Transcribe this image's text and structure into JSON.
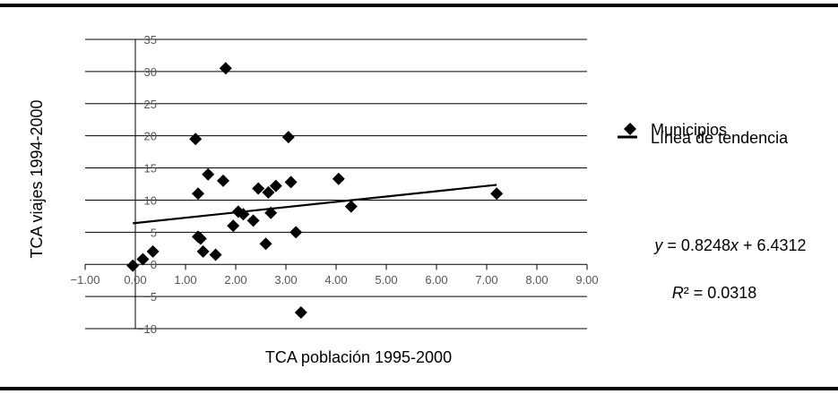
{
  "chart_data": {
    "type": "scatter",
    "xlabel": "TCA población 1995-2000",
    "ylabel": "TCA viajes 1994-2000",
    "xlim": [
      -1,
      9
    ],
    "ylim": [
      -10,
      35
    ],
    "x_ticks": [
      "−1.00",
      "0.00",
      "1.00",
      "2.00",
      "3.00",
      "4.00",
      "5.00",
      "6.00",
      "7.00",
      "8.00",
      "9.00"
    ],
    "y_ticks": [
      "−10",
      "−5",
      "0",
      "5",
      "10",
      "15",
      "20",
      "25",
      "30",
      "35"
    ],
    "grid": "horizontal",
    "legend_position": "right",
    "series": [
      {
        "name": "Municipios",
        "marker": "diamond",
        "color": "#000000",
        "points": [
          [
            -0.05,
            -0.2
          ],
          [
            0.15,
            0.8
          ],
          [
            0.35,
            2.0
          ],
          [
            1.2,
            19.5
          ],
          [
            1.25,
            11.0
          ],
          [
            1.25,
            4.3
          ],
          [
            1.3,
            4.0
          ],
          [
            1.35,
            2.0
          ],
          [
            1.45,
            14.0
          ],
          [
            1.6,
            1.5
          ],
          [
            1.75,
            13.0
          ],
          [
            1.8,
            30.5
          ],
          [
            1.95,
            6.0
          ],
          [
            2.05,
            8.2
          ],
          [
            2.15,
            7.8
          ],
          [
            2.35,
            6.8
          ],
          [
            2.45,
            11.8
          ],
          [
            2.6,
            3.2
          ],
          [
            2.65,
            11.2
          ],
          [
            2.7,
            8.0
          ],
          [
            2.8,
            12.2
          ],
          [
            3.05,
            19.8
          ],
          [
            3.1,
            12.8
          ],
          [
            3.2,
            5.0
          ],
          [
            3.3,
            -7.5
          ],
          [
            4.05,
            13.3
          ],
          [
            4.3,
            9.0
          ],
          [
            7.2,
            11.0
          ]
        ]
      }
    ],
    "trendline": {
      "name": "Línea de tendencia",
      "slope": 0.8248,
      "intercept": 6.4312,
      "x_range": [
        -0.05,
        7.2
      ],
      "equation": "y = 0.8248x + 6.4312",
      "r2": "R² = 0.0318"
    }
  }
}
